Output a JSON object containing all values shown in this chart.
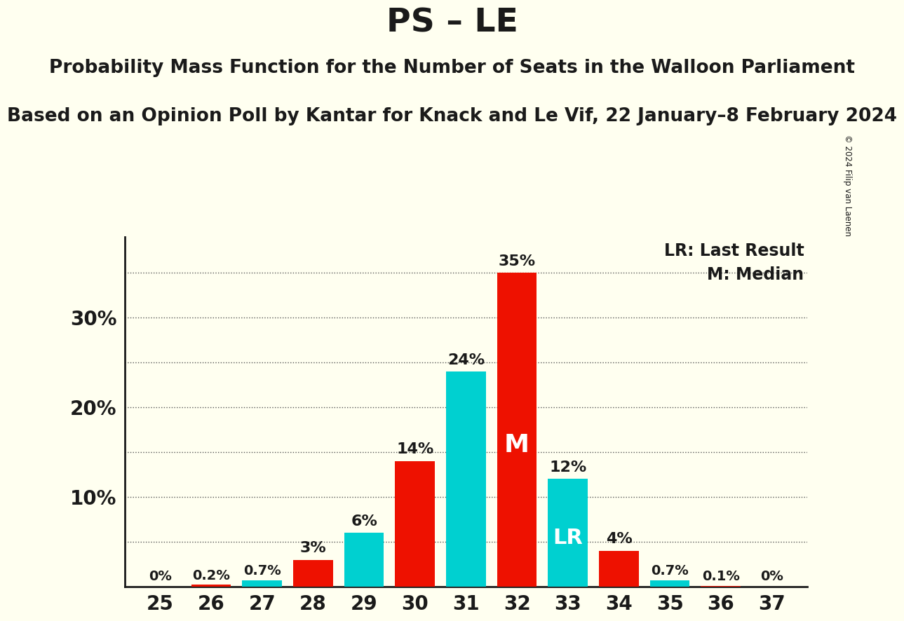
{
  "title": "PS – LE",
  "subtitle1": "Probability Mass Function for the Number of Seats in the Walloon Parliament",
  "subtitle2": "Based on an Opinion Poll by Kantar for Knack and Le Vif, 22 January–8 February 2024",
  "seats": [
    25,
    26,
    27,
    28,
    29,
    30,
    31,
    32,
    33,
    34,
    35,
    36,
    37
  ],
  "values": [
    0.0,
    0.2,
    0.7,
    3.0,
    6.0,
    14.0,
    24.0,
    35.0,
    12.0,
    4.0,
    0.7,
    0.1,
    0.0
  ],
  "colors": [
    "#ee1100",
    "#ee1100",
    "#00d0d0",
    "#ee1100",
    "#00d0d0",
    "#ee1100",
    "#00d0d0",
    "#ee1100",
    "#00d0d0",
    "#ee1100",
    "#00d0d0",
    "#ee1100",
    "#ee1100"
  ],
  "labels": [
    "0%",
    "0.2%",
    "0.7%",
    "3%",
    "6%",
    "14%",
    "24%",
    "35%",
    "12%",
    "4%",
    "0.7%",
    "0.1%",
    "0%"
  ],
  "median_seat": 32,
  "lr_seat": 33,
  "background_color": "#fffff0",
  "bar_red": "#ee1100",
  "bar_cyan": "#00d0d0",
  "title_fontsize": 34,
  "subtitle_fontsize": 19,
  "ytick_labels": [
    "10%",
    "20%",
    "30%"
  ],
  "ytick_values": [
    10,
    20,
    30
  ],
  "ylim": [
    0,
    39
  ],
  "copyright_text": "© 2024 Filip van Laenen",
  "legend_lr": "LR: Last Result",
  "legend_m": "M: Median",
  "dotted_lines": [
    5,
    10,
    15,
    20,
    25,
    30,
    35
  ]
}
